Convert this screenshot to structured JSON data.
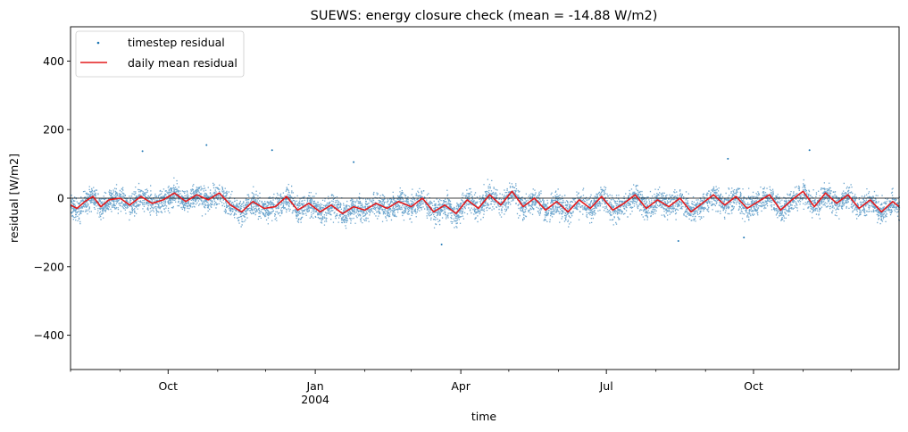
{
  "chart_data": {
    "type": "line",
    "title": "SUEWS: energy closure check (mean = -14.88 W/m2)",
    "xlabel": "time",
    "ylabel": "residual [W/m2]",
    "ylim": [
      -500,
      500
    ],
    "xlim": [
      "2003-08-01",
      "2004-12-31"
    ],
    "y_ticks": [
      {
        "value": 400,
        "label": "400"
      },
      {
        "value": 200,
        "label": "200"
      },
      {
        "value": 0,
        "label": "0"
      },
      {
        "value": -200,
        "label": "−200"
      },
      {
        "value": -400,
        "label": "−400"
      }
    ],
    "x_ticks": [
      {
        "date": "2003-10-01",
        "label": "Oct",
        "sublabel": ""
      },
      {
        "date": "2004-01-01",
        "label": "Jan",
        "sublabel": "2004"
      },
      {
        "date": "2004-04-01",
        "label": "Apr",
        "sublabel": ""
      },
      {
        "date": "2004-07-01",
        "label": "Jul",
        "sublabel": ""
      },
      {
        "date": "2004-10-01",
        "label": "Oct",
        "sublabel": ""
      }
    ],
    "minor_x_ticks": [
      "2003-08-01",
      "2003-09-01",
      "2003-11-01",
      "2003-12-01",
      "2004-02-01",
      "2004-03-01",
      "2004-05-01",
      "2004-06-01",
      "2004-08-01",
      "2004-09-01",
      "2004-11-01",
      "2004-12-01"
    ],
    "zero_line": true,
    "grid": false,
    "legend": "top-left",
    "colors": {
      "timestep": "#1f77b4",
      "daily": "#e41a1c",
      "zero_line": "#000000"
    },
    "series": [
      {
        "name": "timestep residual",
        "style": "points",
        "mean": -14.88,
        "typical_range": [
          -80,
          50
        ],
        "extremes": [
          {
            "date": "2003-09-15",
            "value": 137
          },
          {
            "date": "2003-10-25",
            "value": 155
          },
          {
            "date": "2003-12-05",
            "value": 140
          },
          {
            "date": "2004-01-25",
            "value": 105
          },
          {
            "date": "2004-03-20",
            "value": -135
          },
          {
            "date": "2004-09-15",
            "value": 115
          },
          {
            "date": "2004-11-05",
            "value": 140
          },
          {
            "date": "2004-08-15",
            "value": -125
          },
          {
            "date": "2004-09-25",
            "value": -115
          }
        ]
      },
      {
        "name": "daily mean residual",
        "style": "line",
        "values": [
          {
            "date": "2003-08-01",
            "value": -20
          },
          {
            "date": "2003-08-05",
            "value": -30
          },
          {
            "date": "2003-08-10",
            "value": -10
          },
          {
            "date": "2003-08-15",
            "value": 5
          },
          {
            "date": "2003-08-20",
            "value": -25
          },
          {
            "date": "2003-08-25",
            "value": -5
          },
          {
            "date": "2003-09-01",
            "value": 0
          },
          {
            "date": "2003-09-07",
            "value": -20
          },
          {
            "date": "2003-09-14",
            "value": 5
          },
          {
            "date": "2003-09-21",
            "value": -15
          },
          {
            "date": "2003-09-28",
            "value": -5
          },
          {
            "date": "2003-10-05",
            "value": 15
          },
          {
            "date": "2003-10-12",
            "value": -10
          },
          {
            "date": "2003-10-19",
            "value": 10
          },
          {
            "date": "2003-10-26",
            "value": -5
          },
          {
            "date": "2003-11-02",
            "value": 15
          },
          {
            "date": "2003-11-09",
            "value": -20
          },
          {
            "date": "2003-11-16",
            "value": -40
          },
          {
            "date": "2003-11-23",
            "value": -10
          },
          {
            "date": "2003-11-30",
            "value": -30
          },
          {
            "date": "2003-12-07",
            "value": -25
          },
          {
            "date": "2003-12-14",
            "value": 5
          },
          {
            "date": "2003-12-21",
            "value": -35
          },
          {
            "date": "2003-12-28",
            "value": -15
          },
          {
            "date": "2004-01-04",
            "value": -40
          },
          {
            "date": "2004-01-11",
            "value": -20
          },
          {
            "date": "2004-01-18",
            "value": -45
          },
          {
            "date": "2004-01-25",
            "value": -25
          },
          {
            "date": "2004-02-01",
            "value": -35
          },
          {
            "date": "2004-02-08",
            "value": -15
          },
          {
            "date": "2004-02-15",
            "value": -30
          },
          {
            "date": "2004-02-22",
            "value": -10
          },
          {
            "date": "2004-03-01",
            "value": -25
          },
          {
            "date": "2004-03-08",
            "value": 0
          },
          {
            "date": "2004-03-15",
            "value": -40
          },
          {
            "date": "2004-03-22",
            "value": -20
          },
          {
            "date": "2004-03-29",
            "value": -45
          },
          {
            "date": "2004-04-05",
            "value": -5
          },
          {
            "date": "2004-04-12",
            "value": -30
          },
          {
            "date": "2004-04-19",
            "value": 10
          },
          {
            "date": "2004-04-26",
            "value": -20
          },
          {
            "date": "2004-05-03",
            "value": 20
          },
          {
            "date": "2004-05-10",
            "value": -25
          },
          {
            "date": "2004-05-17",
            "value": 0
          },
          {
            "date": "2004-05-24",
            "value": -35
          },
          {
            "date": "2004-05-31",
            "value": -10
          },
          {
            "date": "2004-06-07",
            "value": -40
          },
          {
            "date": "2004-06-14",
            "value": -5
          },
          {
            "date": "2004-06-21",
            "value": -30
          },
          {
            "date": "2004-06-28",
            "value": 5
          },
          {
            "date": "2004-07-05",
            "value": -35
          },
          {
            "date": "2004-07-12",
            "value": -15
          },
          {
            "date": "2004-07-19",
            "value": 10
          },
          {
            "date": "2004-07-26",
            "value": -30
          },
          {
            "date": "2004-08-02",
            "value": -5
          },
          {
            "date": "2004-08-09",
            "value": -25
          },
          {
            "date": "2004-08-16",
            "value": 0
          },
          {
            "date": "2004-08-23",
            "value": -40
          },
          {
            "date": "2004-08-30",
            "value": -15
          },
          {
            "date": "2004-09-06",
            "value": 10
          },
          {
            "date": "2004-09-13",
            "value": -20
          },
          {
            "date": "2004-09-20",
            "value": 5
          },
          {
            "date": "2004-09-27",
            "value": -30
          },
          {
            "date": "2004-10-04",
            "value": -10
          },
          {
            "date": "2004-10-11",
            "value": 10
          },
          {
            "date": "2004-10-18",
            "value": -35
          },
          {
            "date": "2004-10-25",
            "value": -5
          },
          {
            "date": "2004-11-01",
            "value": 20
          },
          {
            "date": "2004-11-08",
            "value": -25
          },
          {
            "date": "2004-11-15",
            "value": 15
          },
          {
            "date": "2004-11-22",
            "value": -15
          },
          {
            "date": "2004-11-29",
            "value": 10
          },
          {
            "date": "2004-12-06",
            "value": -30
          },
          {
            "date": "2004-12-13",
            "value": -5
          },
          {
            "date": "2004-12-20",
            "value": -40
          },
          {
            "date": "2004-12-27",
            "value": -10
          },
          {
            "date": "2004-12-31",
            "value": -25
          }
        ]
      }
    ]
  }
}
